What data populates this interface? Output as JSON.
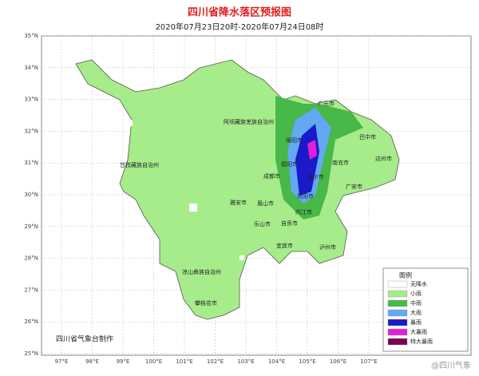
{
  "header": {
    "title": "四川省降水落区预报图",
    "subtitle": "2020年07月23日20时-2020年07月24日08时"
  },
  "axes": {
    "lat_labels": [
      "35°N",
      "34°N",
      "33°N",
      "32°N",
      "31°N",
      "30°N",
      "29°N",
      "28°N",
      "27°N",
      "26°N",
      "25°N"
    ],
    "lon_labels": [
      "97°E",
      "98°E",
      "99°E",
      "100°E",
      "101°E",
      "102°E",
      "103°E",
      "104°E",
      "105°E",
      "106°E",
      "107°E"
    ]
  },
  "places": [
    "阿坝藏族羌族自治州",
    "甘孜藏族自治州",
    "凉山彝族自治州",
    "攀枝花市",
    "雅安市",
    "眉山市",
    "乐山市",
    "成都市",
    "德阳市",
    "绵阳市",
    "广元市",
    "巴中市",
    "南充市",
    "达州市",
    "广安市",
    "遂宁市",
    "资阳市",
    "内江市",
    "自贡市",
    "宜宾市",
    "泸州市"
  ],
  "legend": {
    "title": "图例",
    "items": [
      "无降水",
      "小雨",
      "中雨",
      "大雨",
      "暴雨",
      "大暴雨",
      "特大暴雨"
    ]
  },
  "footer": "四川省气象台制作",
  "watermark": "@四川气象"
}
